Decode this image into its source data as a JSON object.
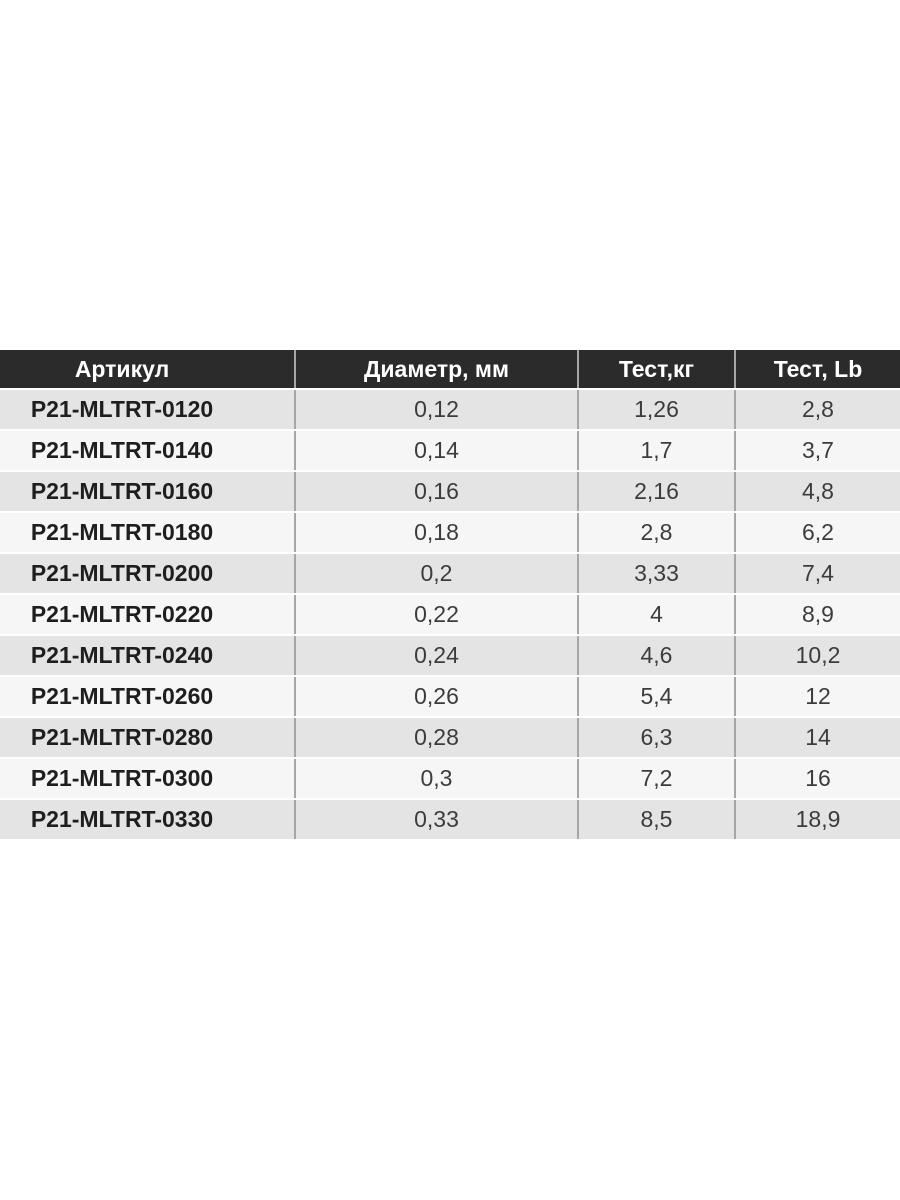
{
  "page": {
    "background": "#ffffff"
  },
  "table": {
    "columns": [
      "Артикул",
      "Диаметр, мм",
      "Тест,кг",
      "Тест, Lb"
    ],
    "rows": [
      [
        "P21-MLTRT-0120",
        "0,12",
        "1,26",
        "2,8"
      ],
      [
        "P21-MLTRT-0140",
        "0,14",
        "1,7",
        "3,7"
      ],
      [
        "P21-MLTRT-0160",
        "0,16",
        "2,16",
        "4,8"
      ],
      [
        "P21-MLTRT-0180",
        "0,18",
        "2,8",
        "6,2"
      ],
      [
        "P21-MLTRT-0200",
        "0,2",
        "3,33",
        "7,4"
      ],
      [
        "P21-MLTRT-0220",
        "0,22",
        "4",
        "8,9"
      ],
      [
        "P21-MLTRT-0240",
        "0,24",
        "4,6",
        "10,2"
      ],
      [
        "P21-MLTRT-0260",
        "0,26",
        "5,4",
        "12"
      ],
      [
        "P21-MLTRT-0280",
        "0,28",
        "6,3",
        "14"
      ],
      [
        "P21-MLTRT-0300",
        "0,3",
        "7,2",
        "16"
      ],
      [
        "P21-MLTRT-0330",
        "0,33",
        "8,5",
        "18,9"
      ]
    ],
    "colors": {
      "header_bg": "#2b2b2b",
      "header_text": "#ffffff",
      "row_odd_bg": "#e4e4e4",
      "row_even_bg": "#f6f6f6",
      "column_separator": "#a6a6a6",
      "body_text": "#3c3c3c",
      "article_text": "#1e1e1e"
    }
  }
}
